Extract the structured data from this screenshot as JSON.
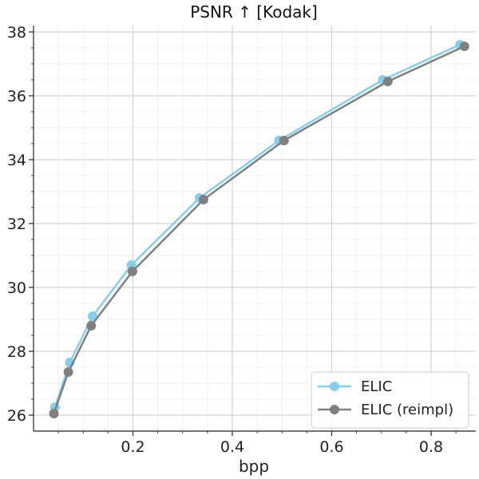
{
  "chart_data": {
    "type": "line",
    "title": "PSNR ↑  [Kodak]",
    "xlabel": "bpp",
    "ylabel": "",
    "xlim": [
      0.0,
      0.89
    ],
    "ylim": [
      25.5,
      38.2
    ],
    "x_ticks": [
      0.2,
      0.4,
      0.6,
      0.8
    ],
    "x_tick_labels": [
      "0.2",
      "0.4",
      "0.6",
      "0.8"
    ],
    "y_ticks": [
      26,
      28,
      30,
      32,
      34,
      36,
      38
    ],
    "y_tick_labels": [
      "26",
      "28",
      "30",
      "32",
      "34",
      "36",
      "38"
    ],
    "grid": true,
    "minor_grid": true,
    "legend_position": "bottom-right",
    "series": [
      {
        "name": "ELIC",
        "color": "#87ceeb",
        "marker": "circle",
        "x": [
          0.043,
          0.073,
          0.119,
          0.197,
          0.334,
          0.494,
          0.703,
          0.858
        ],
        "y": [
          26.25,
          27.65,
          29.1,
          30.7,
          32.8,
          34.6,
          36.5,
          37.6
        ]
      },
      {
        "name": "ELIC (reimpl)",
        "color": "#808080",
        "marker": "circle",
        "x": [
          0.041,
          0.07,
          0.116,
          0.199,
          0.342,
          0.504,
          0.713,
          0.867
        ],
        "y": [
          26.05,
          27.35,
          28.8,
          30.5,
          32.75,
          34.6,
          36.45,
          37.55
        ]
      }
    ]
  }
}
